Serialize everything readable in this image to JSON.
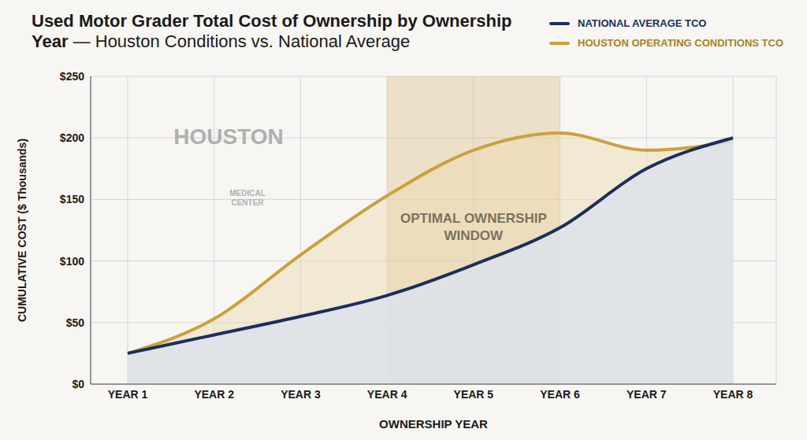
{
  "chart_data": {
    "type": "area",
    "title": "Used Motor Grader Total Cost of Ownership by Ownership Year",
    "subtitle": "— Houston Conditions vs. National Average",
    "x_label": "OWNERSHIP YEAR",
    "y_label": "CUMULATIVE COST ($ Thousands)",
    "categories": [
      "YEAR 1",
      "YEAR 2",
      "YEAR 3",
      "YEAR 4",
      "YEAR 5",
      "YEAR 6",
      "YEAR 7",
      "YEAR 8"
    ],
    "series": [
      {
        "name": "NATIONAL AVERAGE TCO",
        "color": "#1c2f5a",
        "values": [
          25,
          40,
          55,
          72,
          97,
          127,
          175,
          200
        ]
      },
      {
        "name": "HOUSTON OPERATING CONDITIONS TCO",
        "color": "#c9a13f",
        "values": [
          25,
          53,
          105,
          153,
          190,
          204,
          190,
          197
        ]
      }
    ],
    "ylim": [
      0,
      250
    ],
    "yticks": [
      {
        "value": 0,
        "label": "$0"
      },
      {
        "value": 50,
        "label": "$50"
      },
      {
        "value": 100,
        "label": "$100"
      },
      {
        "value": 150,
        "label": "$150"
      },
      {
        "value": 200,
        "label": "$200"
      },
      {
        "value": 250,
        "label": "$250"
      }
    ],
    "grid": true,
    "legend": "top-right",
    "highlight": {
      "x": [
        "YEAR 4",
        "YEAR 6"
      ],
      "label": "OPTIMAL OWNERSHIP WINDOW"
    },
    "annotations": [
      {
        "text": "HOUSTON"
      },
      {
        "text": "MEDICAL CENTER"
      }
    ]
  }
}
